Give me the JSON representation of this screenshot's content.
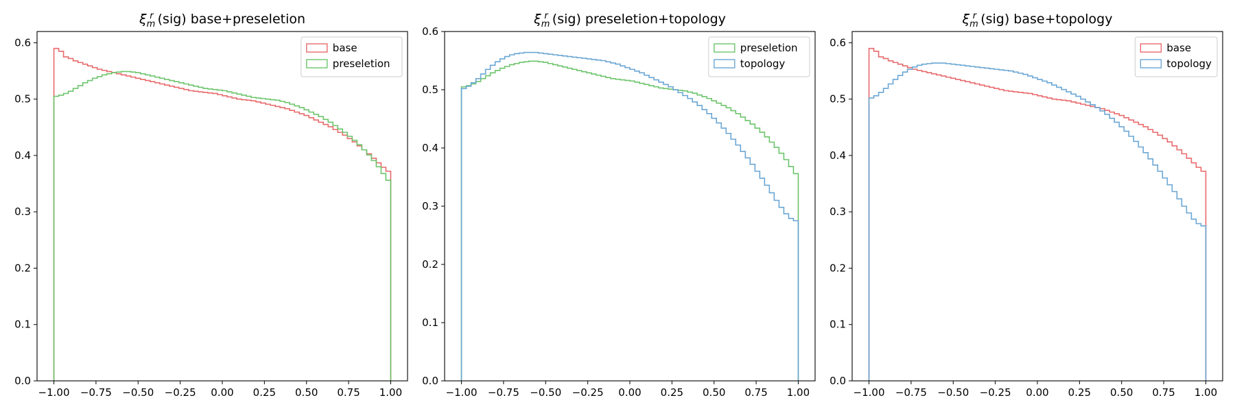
{
  "colors": {
    "base": "#e8696b",
    "preseletion": "#6cc46b",
    "topology": "#6aa6d4"
  },
  "chart_data": [
    {
      "type": "histogram-step",
      "title_sym": "ξ",
      "title_sub": "m",
      "title_sup": "r",
      "title_rest": " (sig) base+preseletion",
      "xlabel": "",
      "ylabel": "",
      "xlim": [
        -1.1,
        1.1
      ],
      "ylim": [
        0,
        0.62
      ],
      "xticks": [
        -1.0,
        -0.75,
        -0.5,
        -0.25,
        0.0,
        0.25,
        0.5,
        0.75,
        1.0
      ],
      "xtick_labels": [
        "−1.00",
        "−0.75",
        "−0.50",
        "−0.25",
        "0.00",
        "0.25",
        "0.50",
        "0.75",
        "1.00"
      ],
      "yticks": [
        0.0,
        0.1,
        0.2,
        0.3,
        0.4,
        0.5,
        0.6
      ],
      "ytick_labels": [
        "0.0",
        "0.1",
        "0.2",
        "0.3",
        "0.4",
        "0.5",
        "0.6"
      ],
      "legend_position": "upper right",
      "series": [
        {
          "name": "base",
          "color_key": "base",
          "values": [
            0.59,
            0.585,
            0.575,
            0.572,
            0.568,
            0.565,
            0.562,
            0.559,
            0.556,
            0.553,
            0.551,
            0.549,
            0.547,
            0.545,
            0.543,
            0.541,
            0.539,
            0.537,
            0.535,
            0.533,
            0.531,
            0.529,
            0.527,
            0.525,
            0.523,
            0.521,
            0.519,
            0.517,
            0.515,
            0.514,
            0.513,
            0.512,
            0.511,
            0.51,
            0.508,
            0.506,
            0.504,
            0.502,
            0.5,
            0.499,
            0.498,
            0.497,
            0.495,
            0.493,
            0.491,
            0.489,
            0.487,
            0.485,
            0.483,
            0.48,
            0.477,
            0.474,
            0.471,
            0.467,
            0.463,
            0.459,
            0.455,
            0.451,
            0.446,
            0.441,
            0.436,
            0.43,
            0.424,
            0.417,
            0.41,
            0.403,
            0.395,
            0.387,
            0.379,
            0.372
          ]
        },
        {
          "name": "preseletion",
          "color_key": "preseletion",
          "values": [
            0.505,
            0.507,
            0.51,
            0.514,
            0.519,
            0.524,
            0.529,
            0.533,
            0.537,
            0.54,
            0.543,
            0.545,
            0.547,
            0.548,
            0.549,
            0.549,
            0.548,
            0.547,
            0.545,
            0.543,
            0.541,
            0.539,
            0.537,
            0.535,
            0.533,
            0.531,
            0.529,
            0.527,
            0.525,
            0.523,
            0.521,
            0.519,
            0.518,
            0.517,
            0.516,
            0.515,
            0.513,
            0.511,
            0.509,
            0.507,
            0.505,
            0.503,
            0.502,
            0.501,
            0.5,
            0.499,
            0.498,
            0.496,
            0.494,
            0.491,
            0.488,
            0.485,
            0.481,
            0.477,
            0.473,
            0.469,
            0.464,
            0.459,
            0.453,
            0.447,
            0.441,
            0.434,
            0.427,
            0.419,
            0.41,
            0.401,
            0.391,
            0.38,
            0.368,
            0.356
          ]
        }
      ]
    },
    {
      "type": "histogram-step",
      "title_sym": "ξ",
      "title_sub": "m",
      "title_sup": "r",
      "title_rest": " (sig) preseletion+topology",
      "xlabel": "",
      "ylabel": "",
      "xlim": [
        -1.1,
        1.1
      ],
      "ylim": [
        0,
        0.6
      ],
      "xticks": [
        -1.0,
        -0.75,
        -0.5,
        -0.25,
        0.0,
        0.25,
        0.5,
        0.75,
        1.0
      ],
      "xtick_labels": [
        "−1.00",
        "−0.75",
        "−0.50",
        "−0.25",
        "0.00",
        "0.25",
        "0.50",
        "0.75",
        "1.00"
      ],
      "yticks": [
        0.0,
        0.1,
        0.2,
        0.3,
        0.4,
        0.5,
        0.6
      ],
      "ytick_labels": [
        "0.0",
        "0.1",
        "0.2",
        "0.3",
        "0.4",
        "0.5",
        "0.6"
      ],
      "legend_position": "upper right",
      "series": [
        {
          "name": "preseletion",
          "color_key": "preseletion",
          "values": [
            0.505,
            0.507,
            0.51,
            0.514,
            0.519,
            0.524,
            0.529,
            0.533,
            0.537,
            0.54,
            0.543,
            0.545,
            0.547,
            0.548,
            0.549,
            0.549,
            0.548,
            0.547,
            0.545,
            0.543,
            0.541,
            0.539,
            0.537,
            0.535,
            0.533,
            0.531,
            0.529,
            0.527,
            0.525,
            0.523,
            0.521,
            0.519,
            0.518,
            0.517,
            0.516,
            0.515,
            0.513,
            0.511,
            0.509,
            0.507,
            0.505,
            0.503,
            0.502,
            0.501,
            0.5,
            0.499,
            0.498,
            0.496,
            0.494,
            0.491,
            0.488,
            0.485,
            0.481,
            0.477,
            0.473,
            0.469,
            0.464,
            0.459,
            0.453,
            0.447,
            0.441,
            0.434,
            0.427,
            0.419,
            0.41,
            0.401,
            0.391,
            0.38,
            0.368,
            0.356
          ]
        },
        {
          "name": "topology",
          "color_key": "topology",
          "values": [
            0.502,
            0.506,
            0.512,
            0.519,
            0.527,
            0.535,
            0.542,
            0.548,
            0.553,
            0.557,
            0.56,
            0.562,
            0.563,
            0.564,
            0.564,
            0.564,
            0.563,
            0.562,
            0.561,
            0.56,
            0.559,
            0.558,
            0.557,
            0.556,
            0.555,
            0.554,
            0.553,
            0.552,
            0.551,
            0.55,
            0.548,
            0.546,
            0.544,
            0.541,
            0.538,
            0.535,
            0.532,
            0.529,
            0.525,
            0.521,
            0.517,
            0.513,
            0.509,
            0.505,
            0.5,
            0.495,
            0.49,
            0.485,
            0.479,
            0.473,
            0.466,
            0.459,
            0.451,
            0.443,
            0.434,
            0.425,
            0.415,
            0.405,
            0.394,
            0.383,
            0.372,
            0.36,
            0.348,
            0.336,
            0.323,
            0.31,
            0.298,
            0.287,
            0.279,
            0.275
          ]
        }
      ]
    },
    {
      "type": "histogram-step",
      "title_sym": "ξ",
      "title_sub": "m",
      "title_sup": "r",
      "title_rest": " (sig) base+topology",
      "xlabel": "",
      "ylabel": "",
      "xlim": [
        -1.1,
        1.1
      ],
      "ylim": [
        0,
        0.62
      ],
      "xticks": [
        -1.0,
        -0.75,
        -0.5,
        -0.25,
        0.0,
        0.25,
        0.5,
        0.75,
        1.0
      ],
      "xtick_labels": [
        "−1.00",
        "−0.75",
        "−0.50",
        "−0.25",
        "0.00",
        "0.25",
        "0.50",
        "0.75",
        "1.00"
      ],
      "yticks": [
        0.0,
        0.1,
        0.2,
        0.3,
        0.4,
        0.5,
        0.6
      ],
      "ytick_labels": [
        "0.0",
        "0.1",
        "0.2",
        "0.3",
        "0.4",
        "0.5",
        "0.6"
      ],
      "legend_position": "upper right",
      "series": [
        {
          "name": "base",
          "color_key": "base",
          "values": [
            0.59,
            0.585,
            0.575,
            0.572,
            0.568,
            0.565,
            0.562,
            0.559,
            0.556,
            0.553,
            0.551,
            0.549,
            0.547,
            0.545,
            0.543,
            0.541,
            0.539,
            0.537,
            0.535,
            0.533,
            0.531,
            0.529,
            0.527,
            0.525,
            0.523,
            0.521,
            0.519,
            0.517,
            0.515,
            0.514,
            0.513,
            0.512,
            0.511,
            0.51,
            0.508,
            0.506,
            0.504,
            0.502,
            0.5,
            0.499,
            0.498,
            0.497,
            0.495,
            0.493,
            0.491,
            0.489,
            0.487,
            0.485,
            0.483,
            0.48,
            0.477,
            0.474,
            0.471,
            0.467,
            0.463,
            0.459,
            0.455,
            0.451,
            0.446,
            0.441,
            0.436,
            0.43,
            0.424,
            0.417,
            0.41,
            0.403,
            0.395,
            0.387,
            0.379,
            0.372
          ]
        },
        {
          "name": "topology",
          "color_key": "topology",
          "values": [
            0.502,
            0.506,
            0.512,
            0.519,
            0.527,
            0.535,
            0.542,
            0.548,
            0.553,
            0.557,
            0.56,
            0.562,
            0.563,
            0.564,
            0.564,
            0.564,
            0.563,
            0.562,
            0.561,
            0.56,
            0.559,
            0.558,
            0.557,
            0.556,
            0.555,
            0.554,
            0.553,
            0.552,
            0.551,
            0.55,
            0.548,
            0.546,
            0.544,
            0.541,
            0.538,
            0.535,
            0.532,
            0.529,
            0.525,
            0.521,
            0.517,
            0.513,
            0.509,
            0.505,
            0.5,
            0.495,
            0.49,
            0.485,
            0.479,
            0.473,
            0.466,
            0.459,
            0.451,
            0.443,
            0.434,
            0.425,
            0.415,
            0.405,
            0.394,
            0.383,
            0.372,
            0.36,
            0.348,
            0.336,
            0.323,
            0.31,
            0.298,
            0.287,
            0.279,
            0.275
          ]
        }
      ]
    }
  ]
}
